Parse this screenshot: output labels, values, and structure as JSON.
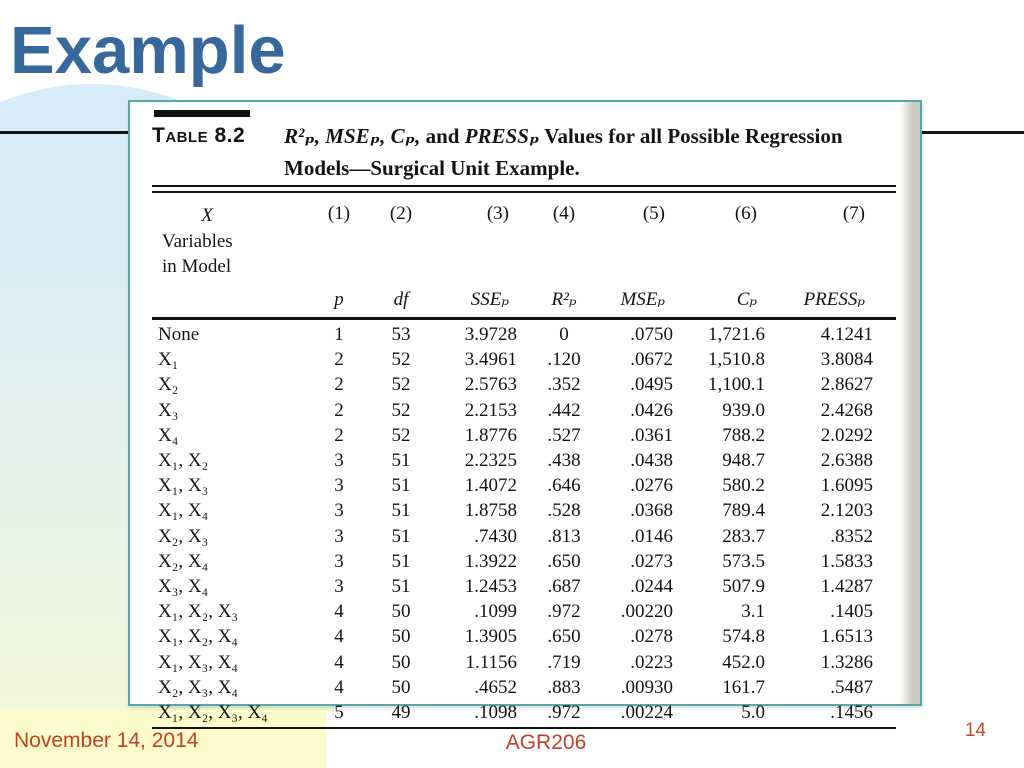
{
  "slide": {
    "title": "Example"
  },
  "footer": {
    "date": "November 14, 2014",
    "course": "AGR206",
    "page": "14"
  },
  "colors": {
    "title_blue": "#38689b",
    "footer_red": "#bf4227",
    "scan_border_teal": "#54aaa7",
    "footer_box_yellow": "#fbfbcb",
    "divider_black": "#161616"
  },
  "table": {
    "label": "Table 8.2",
    "caption_parts": [
      {
        "text": "R²ₚ, MSEₚ, Cₚ,",
        "italic": true
      },
      {
        "text": " and ",
        "italic": false
      },
      {
        "text": "PRESSₚ",
        "italic": true
      },
      {
        "text": " Values for all Possible Regression Models—Surgical Unit Example.",
        "italic": false
      }
    ],
    "model_header": [
      "X",
      "Variables",
      "in Model"
    ],
    "columns": [
      {
        "num": "(1)",
        "label": "p",
        "key": "p"
      },
      {
        "num": "(2)",
        "label": "df",
        "key": "df"
      },
      {
        "num": "(3)",
        "label": "SSEₚ",
        "key": "sse"
      },
      {
        "num": "(4)",
        "label": "R²ₚ",
        "key": "r2"
      },
      {
        "num": "(5)",
        "label": "MSEₚ",
        "key": "mse"
      },
      {
        "num": "(6)",
        "label": "Cₚ",
        "key": "cp"
      },
      {
        "num": "(7)",
        "label": "PRESSₚ",
        "key": "press"
      }
    ],
    "rows": [
      {
        "model": "None",
        "p": "1",
        "df": "53",
        "sse": "3.9728",
        "r2": "0",
        "mse": ".0750",
        "cp": "1,721.6",
        "press": "4.1241"
      },
      {
        "model": "X₁",
        "p": "2",
        "df": "52",
        "sse": "3.4961",
        "r2": ".120",
        "mse": ".0672",
        "cp": "1,510.8",
        "press": "3.8084"
      },
      {
        "model": "X₂",
        "p": "2",
        "df": "52",
        "sse": "2.5763",
        "r2": ".352",
        "mse": ".0495",
        "cp": "1,100.1",
        "press": "2.8627"
      },
      {
        "model": "X₃",
        "p": "2",
        "df": "52",
        "sse": "2.2153",
        "r2": ".442",
        "mse": ".0426",
        "cp": "939.0",
        "press": "2.4268"
      },
      {
        "model": "X₄",
        "p": "2",
        "df": "52",
        "sse": "1.8776",
        "r2": ".527",
        "mse": ".0361",
        "cp": "788.2",
        "press": "2.0292"
      },
      {
        "model": "X₁, X₂",
        "p": "3",
        "df": "51",
        "sse": "2.2325",
        "r2": ".438",
        "mse": ".0438",
        "cp": "948.7",
        "press": "2.6388"
      },
      {
        "model": "X₁, X₃",
        "p": "3",
        "df": "51",
        "sse": "1.4072",
        "r2": ".646",
        "mse": ".0276",
        "cp": "580.2",
        "press": "1.6095"
      },
      {
        "model": "X₁, X₄",
        "p": "3",
        "df": "51",
        "sse": "1.8758",
        "r2": ".528",
        "mse": ".0368",
        "cp": "789.4",
        "press": "2.1203"
      },
      {
        "model": "X₂, X₃",
        "p": "3",
        "df": "51",
        "sse": ".7430",
        "r2": ".813",
        "mse": ".0146",
        "cp": "283.7",
        "press": ".8352"
      },
      {
        "model": "X₂, X₄",
        "p": "3",
        "df": "51",
        "sse": "1.3922",
        "r2": ".650",
        "mse": ".0273",
        "cp": "573.5",
        "press": "1.5833"
      },
      {
        "model": "X₃, X₄",
        "p": "3",
        "df": "51",
        "sse": "1.2453",
        "r2": ".687",
        "mse": ".0244",
        "cp": "507.9",
        "press": "1.4287"
      },
      {
        "model": "X₁, X₂, X₃",
        "p": "4",
        "df": "50",
        "sse": ".1099",
        "r2": ".972",
        "mse": ".00220",
        "cp": "3.1",
        "press": ".1405"
      },
      {
        "model": "X₁, X₂, X₄",
        "p": "4",
        "df": "50",
        "sse": "1.3905",
        "r2": ".650",
        "mse": ".0278",
        "cp": "574.8",
        "press": "1.6513"
      },
      {
        "model": "X₁, X₃, X₄",
        "p": "4",
        "df": "50",
        "sse": "1.1156",
        "r2": ".719",
        "mse": ".0223",
        "cp": "452.0",
        "press": "1.3286"
      },
      {
        "model": "X₂, X₃, X₄",
        "p": "4",
        "df": "50",
        "sse": ".4652",
        "r2": ".883",
        "mse": ".00930",
        "cp": "161.7",
        "press": ".5487"
      },
      {
        "model": "X₁, X₂, X₃, X₄",
        "p": "5",
        "df": "49",
        "sse": ".1098",
        "r2": ".972",
        "mse": ".00224",
        "cp": "5.0",
        "press": ".1456"
      }
    ]
  }
}
